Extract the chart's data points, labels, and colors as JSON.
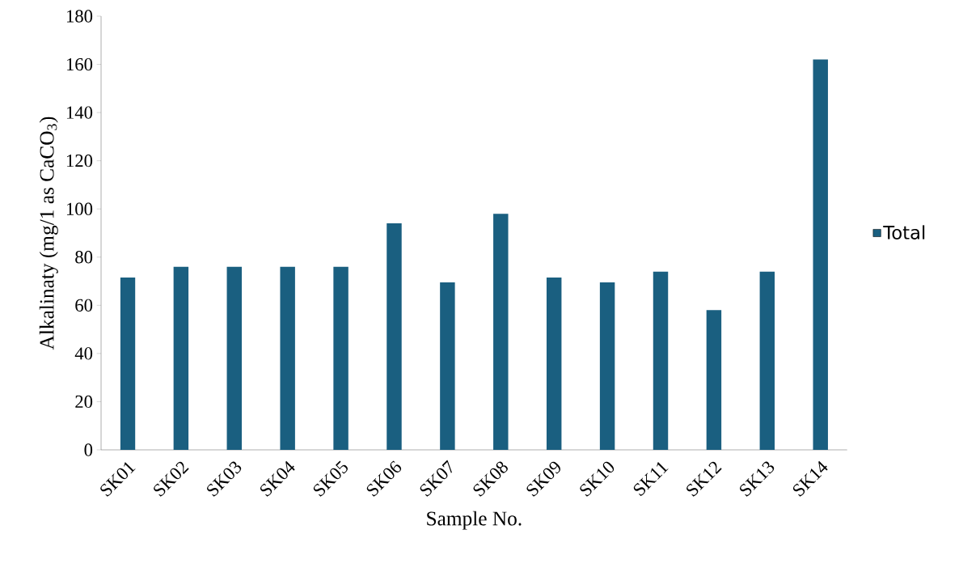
{
  "chart_data": {
    "type": "bar",
    "xlabel": "Sample No.",
    "ylabel": "Alkalinaty (mg/1 as CaCO$_{3}$)",
    "categories": [
      "SK01",
      "SK02",
      "SK03",
      "SK04",
      "SK05",
      "SK06",
      "SK07",
      "SK08",
      "SK09",
      "SK10",
      "SK11",
      "SK12",
      "SK13",
      "SK14"
    ],
    "series": [
      {
        "name": "Total",
        "color": "#1a5f80",
        "values": [
          71.5,
          76,
          76,
          76,
          76,
          94,
          69.5,
          98,
          71.5,
          69.5,
          74,
          58,
          74,
          162
        ]
      }
    ],
    "ylim": [
      0,
      180
    ],
    "yticks": [
      0,
      20,
      40,
      60,
      80,
      100,
      120,
      140,
      160,
      180
    ],
    "legend": "right",
    "grid": false
  }
}
